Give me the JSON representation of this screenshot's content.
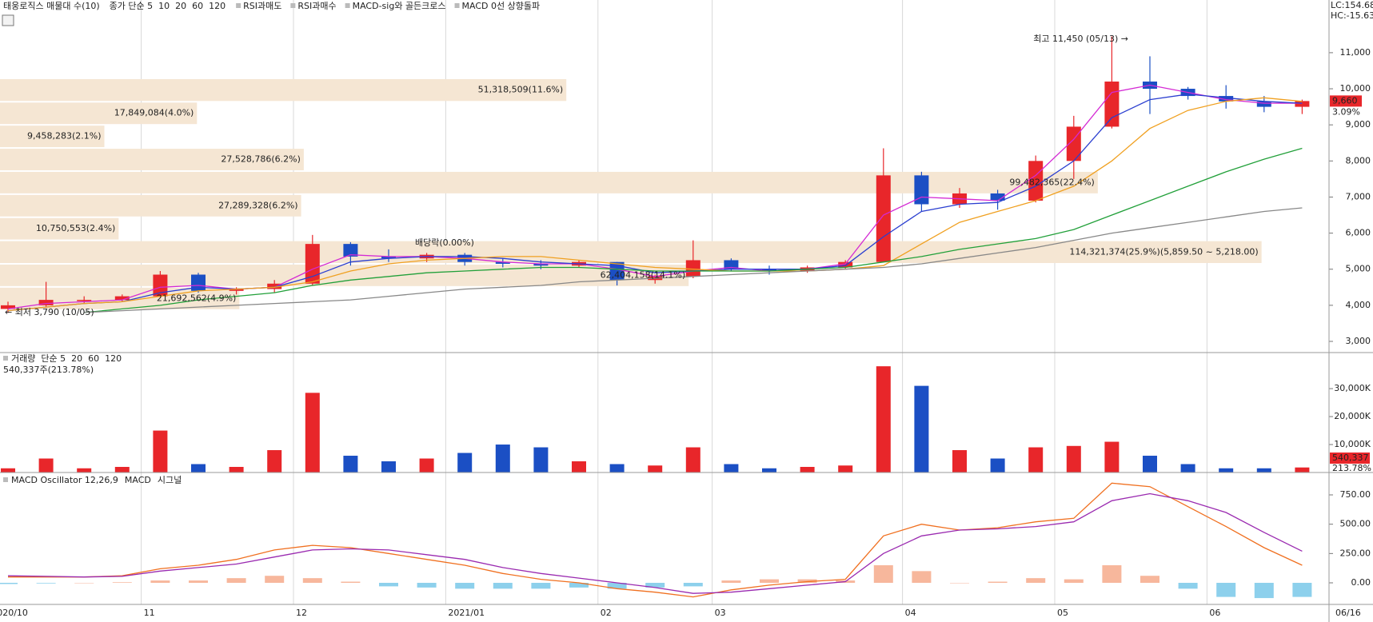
{
  "chart_data": [
    {
      "type": "candlestick",
      "title": "태웅로직스 매물대 수(10)",
      "categories": [
        "2020/10",
        null,
        null,
        null,
        "11",
        null,
        null,
        null,
        "12",
        null,
        null,
        null,
        "2021/01",
        null,
        null,
        null,
        "02",
        null,
        null,
        "03",
        null,
        null,
        null,
        null,
        "04",
        null,
        null,
        null,
        "05",
        null,
        null,
        null,
        "06",
        null,
        null
      ],
      "x_end_label": "06/16",
      "open": [
        3900,
        4000,
        4150,
        4150,
        4250,
        4850,
        4400,
        4450,
        4600,
        5700,
        5350,
        5300,
        5400,
        5200,
        5150,
        5100,
        5200,
        4700,
        4800,
        5250,
        5000,
        4950,
        5050,
        5200,
        7600,
        6800,
        7100,
        6900,
        8000,
        8950,
        10200,
        10000,
        9800,
        9650,
        9500
      ],
      "high": [
        4100,
        4650,
        4250,
        4300,
        4950,
        4900,
        4500,
        4700,
        5950,
        5750,
        5550,
        5450,
        5450,
        5300,
        5250,
        5250,
        5200,
        4850,
        5800,
        5300,
        5100,
        5100,
        5250,
        8350,
        7700,
        7250,
        7200,
        8150,
        9250,
        11450,
        10900,
        10050,
        10100,
        9800,
        9700
      ],
      "low": [
        3790,
        3950,
        4050,
        4100,
        4200,
        4350,
        4300,
        4350,
        4550,
        5100,
        5200,
        5200,
        5100,
        5050,
        5000,
        5050,
        4550,
        4600,
        4750,
        4950,
        4850,
        4900,
        5000,
        5200,
        6600,
        6700,
        6650,
        6850,
        7500,
        8900,
        9300,
        9700,
        9450,
        9350,
        9300
      ],
      "close": [
        4000,
        4150,
        4150,
        4250,
        4850,
        4400,
        4450,
        4600,
        5700,
        5350,
        5300,
        5400,
        5200,
        5150,
        5100,
        5200,
        4700,
        4800,
        5250,
        5000,
        4950,
        5050,
        5200,
        7600,
        6800,
        7100,
        6900,
        8000,
        8950,
        10200,
        10000,
        9800,
        9650,
        9500,
        9660
      ],
      "up_color": "#e8262a",
      "down_color": "#1b4fc4",
      "series": [
        {
          "name": "종가 단순 5",
          "color": "#d42ad4",
          "values": [
            3900,
            4050,
            4100,
            4150,
            4500,
            4550,
            4450,
            4500,
            5000,
            5400,
            5350,
            5350,
            5300,
            5200,
            5150,
            5150,
            5000,
            4800,
            4950,
            5050,
            4950,
            5000,
            5150,
            6500,
            7000,
            6950,
            6900,
            7600,
            8600,
            9900,
            10100,
            9900,
            9700,
            9600,
            9600
          ]
        },
        {
          "name": "10",
          "color": "#2b3fd0",
          "values": [
            3850,
            3950,
            4050,
            4100,
            4350,
            4500,
            4450,
            4500,
            4800,
            5200,
            5300,
            5350,
            5350,
            5300,
            5200,
            5150,
            5100,
            4900,
            4950,
            5000,
            5000,
            5000,
            5100,
            5900,
            6600,
            6800,
            6850,
            7300,
            8000,
            9200,
            9700,
            9850,
            9750,
            9650,
            9600
          ]
        },
        {
          "name": "20",
          "color": "#f0a020",
          "values": [
            3850,
            3950,
            4050,
            4100,
            4250,
            4400,
            4450,
            4500,
            4650,
            4950,
            5150,
            5250,
            5300,
            5350,
            5350,
            5250,
            5150,
            5050,
            5000,
            4950,
            4950,
            4950,
            5000,
            5100,
            5700,
            6300,
            6600,
            6900,
            7300,
            8000,
            8900,
            9400,
            9650,
            9750,
            9650
          ]
        },
        {
          "name": "60",
          "color": "#22a03a",
          "values": [
            null,
            null,
            3800,
            3900,
            4000,
            4150,
            4250,
            4350,
            4550,
            4700,
            4800,
            4900,
            4950,
            5000,
            5050,
            5050,
            5000,
            4950,
            4950,
            4950,
            4950,
            5000,
            5050,
            5200,
            5350,
            5550,
            5700,
            5850,
            6100,
            6500,
            6900,
            7300,
            7700,
            8050,
            8350
          ]
        },
        {
          "name": "120",
          "color": "#888888",
          "values": [
            null,
            null,
            3800,
            3850,
            3900,
            3950,
            4000,
            4050,
            4100,
            4150,
            4250,
            4350,
            4450,
            4500,
            4550,
            4650,
            4700,
            4750,
            4800,
            4850,
            4900,
            4950,
            5000,
            5050,
            5150,
            5300,
            5450,
            5600,
            5800,
            6000,
            6150,
            6300,
            6450,
            6600,
            6700
          ]
        }
      ],
      "signals": [
        {
          "name": "RSI과매도",
          "color": "#e0262a"
        },
        {
          "name": "RSI과매수",
          "color": "#1b3fc4"
        },
        {
          "name": "MACD-sig와 골든크로스",
          "color": "#f07818"
        },
        {
          "name": "MACD 0선 상향돌파",
          "color": "#f0d000"
        }
      ],
      "ylim": [
        2690,
        12460
      ],
      "yticks": [
        {
          "value": 3000,
          "label": "3,000"
        },
        {
          "value": 4000,
          "label": "4,000"
        },
        {
          "value": 5000,
          "label": "5,000"
        },
        {
          "value": 6000,
          "label": "6,000"
        },
        {
          "value": 7000,
          "label": "7,000"
        },
        {
          "value": 8000,
          "label": "8,000"
        },
        {
          "value": 9000,
          "label": "9,000"
        },
        {
          "value": 10000,
          "label": "10,000"
        },
        {
          "value": 11000,
          "label": "11,000"
        }
      ],
      "volume_profile": {
        "color": "#f5e6d3",
        "edges": [
          3870,
          4510,
          5150,
          5800,
          6440,
          7080,
          7720,
          8360,
          9000,
          9640,
          10290
        ],
        "values": [
          21692562,
          62404158,
          114321374,
          10750553,
          27289328,
          99482365,
          27528786,
          9458283,
          17849084,
          51318509
        ],
        "value_labels": [
          "21,692,562(4.9%)",
          "62,404,158(14.1%)",
          "114,321,374(25.9%)(5,859.50 ~ 5,218.00)",
          "10,750,553(2.4%)",
          "27,289,328(6.2%)",
          "99,482,365(22.4%)",
          "27,528,786(6.2%)",
          "9,458,283(2.1%)",
          "17,849,084(4.0%)",
          "51,318,509(11.6%)"
        ]
      },
      "annotations": [
        {
          "text": "최고 11,450 (05/13) →",
          "color": "#e0262a"
        },
        {
          "text": "← 최저 3,790 (10/05)",
          "color": "#1b3fc4"
        },
        {
          "text": "배당락(0.00%)",
          "color": "#333333"
        }
      ],
      "last": {
        "values": [
          9660,
          3.09
        ],
        "value_labels": [
          "9,660",
          "3.09%"
        ]
      },
      "corner_labels": [
        "LC:154.68",
        "HC:-15.63"
      ]
    },
    {
      "type": "volume",
      "title": "540,337주(213.78%)",
      "series": [
        {
          "name": "거래량",
          "color": "#1a9a9a",
          "values": [
            1500,
            5000,
            1500,
            2000,
            15000,
            3000,
            2000,
            8000,
            28500,
            6000,
            4000,
            5000,
            7000,
            10000,
            9000,
            4000,
            3000,
            2500,
            9000,
            3000,
            1500,
            2000,
            2500,
            38000,
            31000,
            8000,
            5000,
            9000,
            9500,
            11000,
            6000,
            3000,
            1500,
            1500,
            1800
          ]
        }
      ],
      "ma_labels": [
        {
          "name": "단순 5",
          "color": "#d42ad4"
        },
        {
          "name": "20",
          "color": "#f0a020"
        },
        {
          "name": "60",
          "color": "#22a03a"
        },
        {
          "name": "120",
          "color": "#888888"
        }
      ],
      "ylim": [
        0,
        42900
      ],
      "yticks": [
        {
          "value": 10000,
          "label": "10,000K"
        },
        {
          "value": 20000,
          "label": "20,000K"
        },
        {
          "value": 30000,
          "label": "30,000K"
        }
      ],
      "last": {
        "values": [
          540337,
          213.78
        ],
        "value_labels": [
          "540,337",
          "213.78%"
        ]
      }
    },
    {
      "type": "macd",
      "series": [
        {
          "name": "MACD Oscillator 12,26,9",
          "color": "#f7b79c",
          "negative_color": "#8dd0ec",
          "values": [
            -10,
            -5,
            0,
            5,
            20,
            20,
            40,
            60,
            40,
            10,
            -30,
            -40,
            -50,
            -50,
            -50,
            -40,
            -50,
            -40,
            -30,
            20,
            30,
            30,
            20,
            150,
            100,
            0,
            10,
            40,
            30,
            150,
            60,
            -50,
            -120,
            -130,
            -120
          ]
        },
        {
          "name": "MACD",
          "color": "#f07020",
          "values": [
            50,
            50,
            50,
            60,
            120,
            150,
            200,
            280,
            320,
            300,
            250,
            200,
            150,
            80,
            30,
            0,
            -50,
            -80,
            -120,
            -60,
            -20,
            10,
            30,
            400,
            500,
            450,
            470,
            520,
            550,
            850,
            820,
            650,
            480,
            300,
            150
          ]
        },
        {
          "name": "시그널",
          "color": "#9a2ab0",
          "values": [
            60,
            55,
            50,
            55,
            100,
            130,
            160,
            220,
            280,
            290,
            280,
            240,
            200,
            130,
            80,
            40,
            0,
            -40,
            -90,
            -80,
            -50,
            -20,
            10,
            250,
            400,
            450,
            460,
            480,
            520,
            700,
            760,
            700,
            600,
            430,
            270
          ]
        }
      ],
      "ylim": [
        -184,
        941
      ],
      "yticks": [
        {
          "value": 0,
          "label": "0.00"
        },
        {
          "value": 250,
          "label": "250.00"
        },
        {
          "value": 500,
          "label": "500.00"
        },
        {
          "value": 750,
          "label": "750.00"
        }
      ]
    }
  ]
}
